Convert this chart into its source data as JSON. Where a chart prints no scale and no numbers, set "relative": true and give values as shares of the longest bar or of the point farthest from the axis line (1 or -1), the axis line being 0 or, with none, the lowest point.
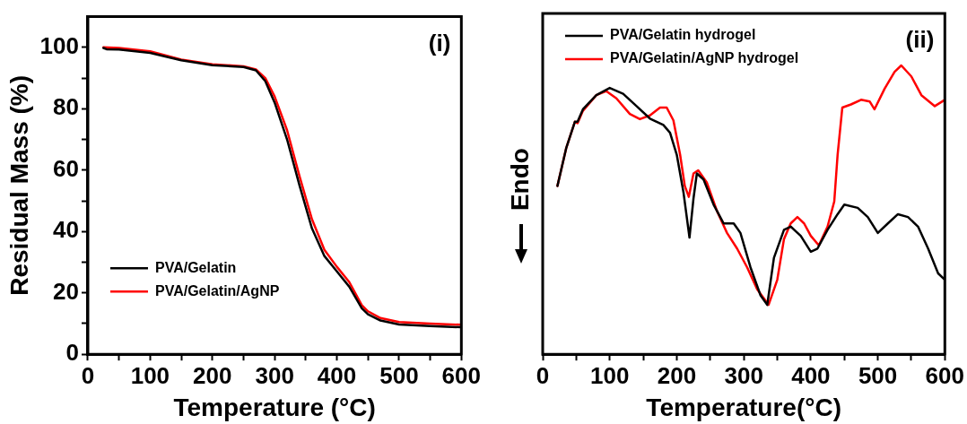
{
  "chart_data": [
    {
      "type": "line",
      "xlabel": "Temperature (°C)",
      "ylabel": "Residual Mass (%)",
      "annotations": [
        "(i)"
      ],
      "legend": "bottom left",
      "grid": false,
      "marker": "none",
      "line_style": "solid",
      "xlim": [
        0,
        600
      ],
      "ylim": [
        0,
        110
      ],
      "xticks": [
        0,
        {
          "value": 50,
          "label": null
        },
        100,
        {
          "value": 150,
          "label": null
        },
        200,
        {
          "value": 250,
          "label": null
        },
        300,
        {
          "value": 350,
          "label": null
        },
        400,
        {
          "value": 450,
          "label": null
        },
        500,
        {
          "value": 550,
          "label": null
        },
        600
      ],
      "yticks": [
        0,
        {
          "value": 10,
          "label": null
        },
        20,
        {
          "value": 30,
          "label": null
        },
        40,
        {
          "value": 50,
          "label": null
        },
        60,
        {
          "value": 70,
          "label": null
        },
        80,
        {
          "value": 90,
          "label": null
        },
        100
      ],
      "series": [
        {
          "name": "PVA/Gelatin",
          "color": "#000000",
          "x": [
            25,
            30,
            50,
            100,
            150,
            200,
            250,
            270,
            285,
            300,
            320,
            340,
            360,
            380,
            400,
            420,
            440,
            450,
            470,
            500,
            550,
            600
          ],
          "values": [
            99.8,
            99.4,
            99.3,
            98.2,
            95.8,
            94.2,
            93.6,
            92.5,
            89,
            82,
            70,
            55,
            41,
            32,
            27,
            22,
            15,
            13,
            11,
            9.7,
            9.2,
            8.8
          ]
        },
        {
          "name": "PVA/Gelatin/AgNP",
          "color": "#ff0000",
          "x": [
            25,
            50,
            100,
            150,
            200,
            250,
            270,
            285,
            300,
            320,
            340,
            360,
            380,
            400,
            420,
            440,
            450,
            470,
            500,
            550,
            600
          ],
          "values": [
            100,
            99.8,
            98.7,
            96,
            94.5,
            93.8,
            92.8,
            90,
            84,
            73,
            58,
            44,
            34,
            28.5,
            23.5,
            16,
            14,
            11.8,
            10.5,
            10,
            9.6
          ]
        }
      ]
    },
    {
      "type": "line",
      "xlabel": "Temperature(°C)",
      "ylabel": "Endo",
      "annotations": [
        "(ii)"
      ],
      "legend": "top left",
      "grid": false,
      "marker": "none",
      "line_style": "solid",
      "relative": true,
      "xlim": [
        0,
        600
      ],
      "xticks": [
        0,
        {
          "value": 50,
          "label": null
        },
        100,
        {
          "value": 150,
          "label": null
        },
        200,
        {
          "value": 250,
          "label": null
        },
        300,
        {
          "value": 350,
          "label": null
        },
        400,
        {
          "value": 450,
          "label": null
        },
        500,
        {
          "value": 550,
          "label": null
        },
        600
      ],
      "series": [
        {
          "name": "PVA/Gelatin hydrogel",
          "color": "#000000",
          "x": [
            22,
            35,
            48,
            52,
            60,
            80,
            100,
            120,
            140,
            160,
            180,
            190,
            200,
            210,
            219,
            225,
            230,
            240,
            255,
            270,
            285,
            295,
            310,
            325,
            335,
            345,
            360,
            370,
            385,
            400,
            410,
            425,
            440,
            450,
            470,
            485,
            500,
            515,
            530,
            545,
            560,
            575,
            590,
            600
          ],
          "values": [
            0.583,
            0.713,
            0.805,
            0.805,
            0.848,
            0.897,
            0.922,
            0.902,
            0.859,
            0.816,
            0.794,
            0.767,
            0.691,
            0.561,
            0.404,
            0.54,
            0.626,
            0.605,
            0.518,
            0.453,
            0.453,
            0.42,
            0.301,
            0.204,
            0.171,
            0.334,
            0.431,
            0.442,
            0.41,
            0.355,
            0.366,
            0.431,
            0.485,
            0.518,
            0.507,
            0.475,
            0.42,
            0.453,
            0.485,
            0.475,
            0.442,
            0.366,
            0.28,
            0.258
          ]
        },
        {
          "name": "PVA/Gelatin/AgNP hydrogel",
          "color": "#ff0000",
          "x": [
            22,
            35,
            48,
            52,
            60,
            80,
            95,
            110,
            130,
            145,
            160,
            175,
            185,
            195,
            205,
            212,
            218,
            225,
            232,
            245,
            260,
            275,
            290,
            305,
            320,
            337,
            350,
            360,
            370,
            380,
            390,
            400,
            412,
            425,
            435,
            440,
            447,
            460,
            475,
            488,
            495,
            510,
            525,
            535,
            550,
            565,
            585,
            600
          ],
          "values": [
            0.583,
            0.713,
            0.805,
            0.8,
            0.843,
            0.897,
            0.911,
            0.886,
            0.832,
            0.814,
            0.827,
            0.854,
            0.854,
            0.81,
            0.691,
            0.583,
            0.545,
            0.626,
            0.637,
            0.594,
            0.496,
            0.42,
            0.366,
            0.301,
            0.225,
            0.171,
            0.258,
            0.399,
            0.453,
            0.475,
            0.453,
            0.41,
            0.377,
            0.442,
            0.529,
            0.691,
            0.854,
            0.865,
            0.881,
            0.875,
            0.848,
            0.919,
            0.978,
            1,
            0.962,
            0.897,
            0.859,
            0.881
          ]
        }
      ]
    }
  ]
}
